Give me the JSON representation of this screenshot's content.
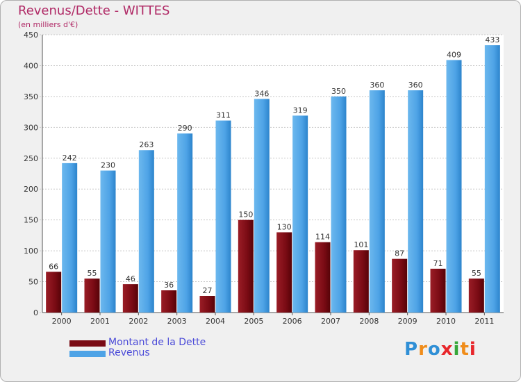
{
  "header": {
    "title": "Revenus/Dette - WITTES",
    "subtitle": "(en milliers d'€)"
  },
  "legend": {
    "items": [
      {
        "label": "Montant de la Dette",
        "color": "#7a0b14"
      },
      {
        "label": "Revenus",
        "color": "#4ea3e6"
      }
    ],
    "label_color": "#4a4ad8"
  },
  "logo": {
    "text": "Proxiti",
    "letter_colors": [
      "#2f8fd6",
      "#f08c1a",
      "#2f8fd6",
      "#e8262b",
      "#37a63a",
      "#f08c1a",
      "#e8262b"
    ]
  },
  "chart_data": {
    "type": "bar",
    "categories": [
      "2000",
      "2001",
      "2002",
      "2003",
      "2004",
      "2005",
      "2006",
      "2007",
      "2008",
      "2009",
      "2010",
      "2011"
    ],
    "series": [
      {
        "name": "Montant de la Dette",
        "color": "#7a0b14",
        "values": [
          66,
          55,
          46,
          36,
          27,
          150,
          130,
          114,
          101,
          87,
          71,
          55
        ]
      },
      {
        "name": "Revenus",
        "color": "#4ea3e6",
        "values": [
          242,
          230,
          263,
          290,
          311,
          346,
          319,
          350,
          360,
          360,
          409,
          433
        ]
      }
    ],
    "ylim": [
      0,
      450
    ],
    "yticks": [
      0,
      50,
      100,
      150,
      200,
      250,
      300,
      350,
      400,
      450
    ],
    "grid": true,
    "legend_position": "bottom-left"
  }
}
